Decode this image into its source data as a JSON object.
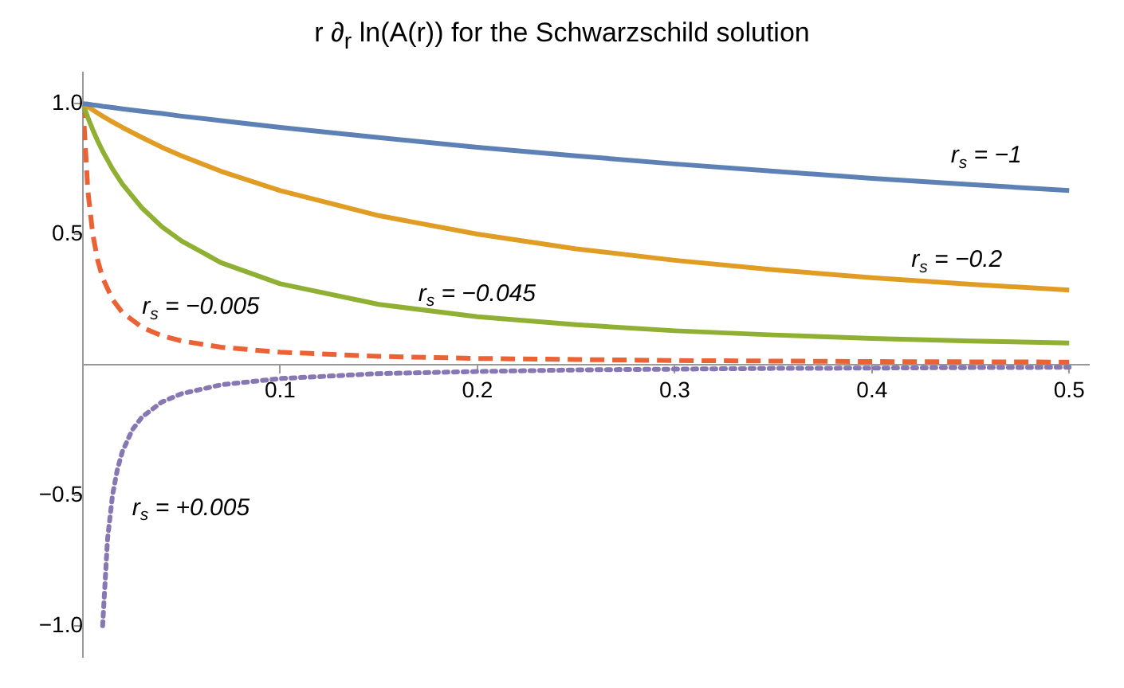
{
  "chart_data": {
    "type": "line",
    "title": "r ∂$_{r}$ ln(A(r)) for the Schwarzschild solution",
    "x": [
      0,
      0.0025,
      0.005,
      0.0075,
      0.01,
      0.015,
      0.02,
      0.03,
      0.04,
      0.05,
      0.07,
      0.1,
      0.15,
      0.2,
      0.25,
      0.3,
      0.35,
      0.4,
      0.45,
      0.5
    ],
    "series": [
      {
        "name": "r$_{s}$ = −1",
        "color": "#5e81b5",
        "values": [
          1,
          0.998,
          0.995,
          0.993,
          0.99,
          0.985,
          0.98,
          0.971,
          0.962,
          0.952,
          0.935,
          0.909,
          0.87,
          0.833,
          0.8,
          0.769,
          0.741,
          0.714,
          0.69,
          0.667
        ]
      },
      {
        "name": "r$_{s}$ = −0.2",
        "color": "#e19c24",
        "values": [
          1,
          0.988,
          0.976,
          0.964,
          0.952,
          0.93,
          0.909,
          0.87,
          0.833,
          0.8,
          0.741,
          0.667,
          0.571,
          0.5,
          0.444,
          0.4,
          0.364,
          0.333,
          0.308,
          0.286
        ]
      },
      {
        "name": "r$_{s}$ = −0.045",
        "color": "#8fb032",
        "values": [
          1,
          0.947,
          0.9,
          0.857,
          0.818,
          0.75,
          0.692,
          0.6,
          0.529,
          0.474,
          0.391,
          0.31,
          0.231,
          0.184,
          0.153,
          0.13,
          0.114,
          0.101,
          0.091,
          0.083
        ]
      },
      {
        "name": "r$_{s}$ = −0.005",
        "color": "#eb6235",
        "line_style": "dashed",
        "values": [
          1,
          0.667,
          0.5,
          0.4,
          0.333,
          0.25,
          0.2,
          0.143,
          0.111,
          0.091,
          0.067,
          0.048,
          0.032,
          0.024,
          0.02,
          0.016,
          0.014,
          0.012,
          0.011,
          0.01
        ]
      },
      {
        "name": "r$_{s}$ = +0.005",
        "color": "#8778b3",
        "line_style": "dotted",
        "x": [
          0.01,
          0.0125,
          0.015,
          0.0175,
          0.02,
          0.025,
          0.03,
          0.04,
          0.05,
          0.07,
          0.1,
          0.15,
          0.2,
          0.25,
          0.3,
          0.35,
          0.4,
          0.45,
          0.5
        ],
        "values": [
          -1,
          -0.667,
          -0.5,
          -0.4,
          -0.333,
          -0.25,
          -0.2,
          -0.143,
          -0.111,
          -0.077,
          -0.053,
          -0.034,
          -0.026,
          -0.02,
          -0.017,
          -0.014,
          -0.013,
          -0.011,
          -0.01
        ]
      }
    ],
    "xlim": [
      0,
      0.51
    ],
    "xticks": [
      0.1,
      0.2,
      0.3,
      0.4,
      0.5
    ],
    "ylim": [
      -1.12,
      1.12
    ],
    "yticks": [
      {
        "value": -1,
        "label": "−1.0"
      },
      {
        "value": -0.5,
        "label": "−0.5"
      },
      0.5,
      {
        "value": 1,
        "label": "1.0"
      }
    ],
    "grid": false,
    "legend": false,
    "marker": "none",
    "line_style": "solid"
  }
}
